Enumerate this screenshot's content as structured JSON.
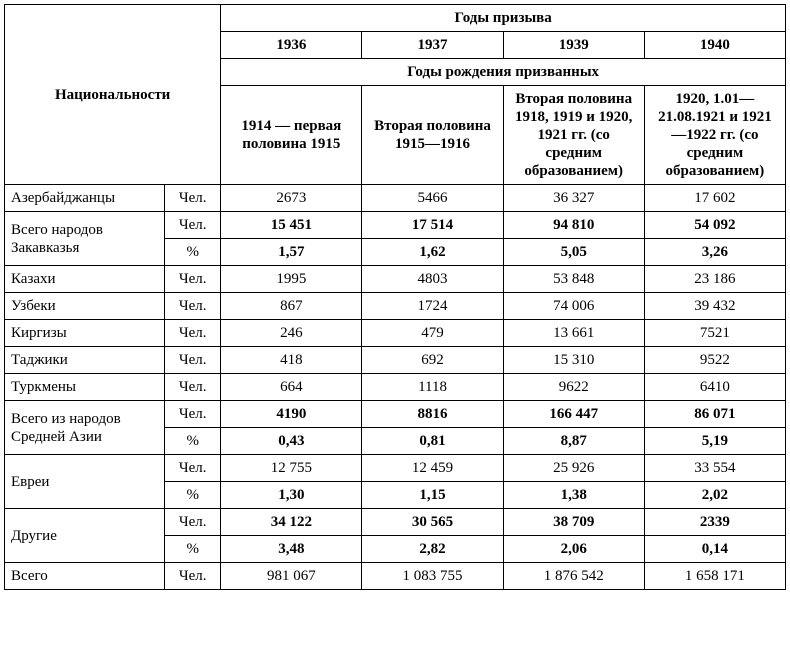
{
  "header": {
    "natsionalnosti": "Национальности",
    "gody_prizyva": "Годы призыва",
    "years": [
      "1936",
      "1937",
      "1939",
      "1940"
    ],
    "gody_rozhd": "Годы рождения призванных",
    "birth_ranges": [
      "1914 — первая половина 1915",
      "Вторая половина 1915—1916",
      "Вторая половина 1918, 1919 и 1920, 1921 гг. (со средним образованием)",
      "1920, 1.01—21.08.1921 и 1921—1922 гг. (со средним образованием)"
    ]
  },
  "units": {
    "chel": "Чел.",
    "pct": "%"
  },
  "rows": [
    {
      "label": "Азербайджанцы",
      "bold": false,
      "lines": [
        {
          "unit": "chel",
          "vals": [
            "2673",
            "5466",
            "36 327",
            "17 602"
          ]
        }
      ]
    },
    {
      "label": "Всего народов Закавказья",
      "bold": true,
      "lines": [
        {
          "unit": "chel",
          "vals": [
            "15 451",
            "17 514",
            "94 810",
            "54 092"
          ]
        },
        {
          "unit": "pct",
          "vals": [
            "1,57",
            "1,62",
            "5,05",
            "3,26"
          ]
        }
      ]
    },
    {
      "label": "Казахи",
      "bold": false,
      "lines": [
        {
          "unit": "chel",
          "vals": [
            "1995",
            "4803",
            "53 848",
            "23 186"
          ]
        }
      ]
    },
    {
      "label": "Узбеки",
      "bold": false,
      "lines": [
        {
          "unit": "chel",
          "vals": [
            "867",
            "1724",
            "74 006",
            "39 432"
          ]
        }
      ]
    },
    {
      "label": "Киргизы",
      "bold": false,
      "lines": [
        {
          "unit": "chel",
          "vals": [
            "246",
            "479",
            "13 661",
            "7521"
          ]
        }
      ]
    },
    {
      "label": "Таджики",
      "bold": false,
      "lines": [
        {
          "unit": "chel",
          "vals": [
            "418",
            "692",
            "15 310",
            "9522"
          ]
        }
      ]
    },
    {
      "label": "Туркмены",
      "bold": false,
      "lines": [
        {
          "unit": "chel",
          "vals": [
            "664",
            "1118",
            "9622",
            "6410"
          ]
        }
      ]
    },
    {
      "label": "Всего из народов Средней Азии",
      "bold": true,
      "lines": [
        {
          "unit": "chel",
          "vals": [
            "4190",
            "8816",
            "166 447",
            "86 071"
          ]
        },
        {
          "unit": "pct",
          "vals": [
            "0,43",
            "0,81",
            "8,87",
            "5,19"
          ]
        }
      ]
    },
    {
      "label": "Евреи",
      "bold": false,
      "lines": [
        {
          "unit": "chel",
          "vals": [
            "12 755",
            "12 459",
            "25 926",
            "33 554"
          ]
        },
        {
          "unit": "pct",
          "vals": [
            "1,30",
            "1,15",
            "1,38",
            "2,02"
          ],
          "bold": true
        }
      ]
    },
    {
      "label": "Другие",
      "bold": true,
      "lines": [
        {
          "unit": "chel",
          "vals": [
            "34 122",
            "30 565",
            "38 709",
            "2339"
          ]
        },
        {
          "unit": "pct",
          "vals": [
            "3,48",
            "2,82",
            "2,06",
            "0,14"
          ]
        }
      ]
    },
    {
      "label": "Всего",
      "bold": false,
      "lines": [
        {
          "unit": "chel",
          "vals": [
            "981 067",
            "1 083 755",
            "1 876 542",
            "1 658 171"
          ]
        }
      ]
    }
  ],
  "style": {
    "font_family": "Times New Roman",
    "font_size_pt": 11,
    "border_color": "#000000",
    "background_color": "#ffffff",
    "text_color": "#000000"
  }
}
